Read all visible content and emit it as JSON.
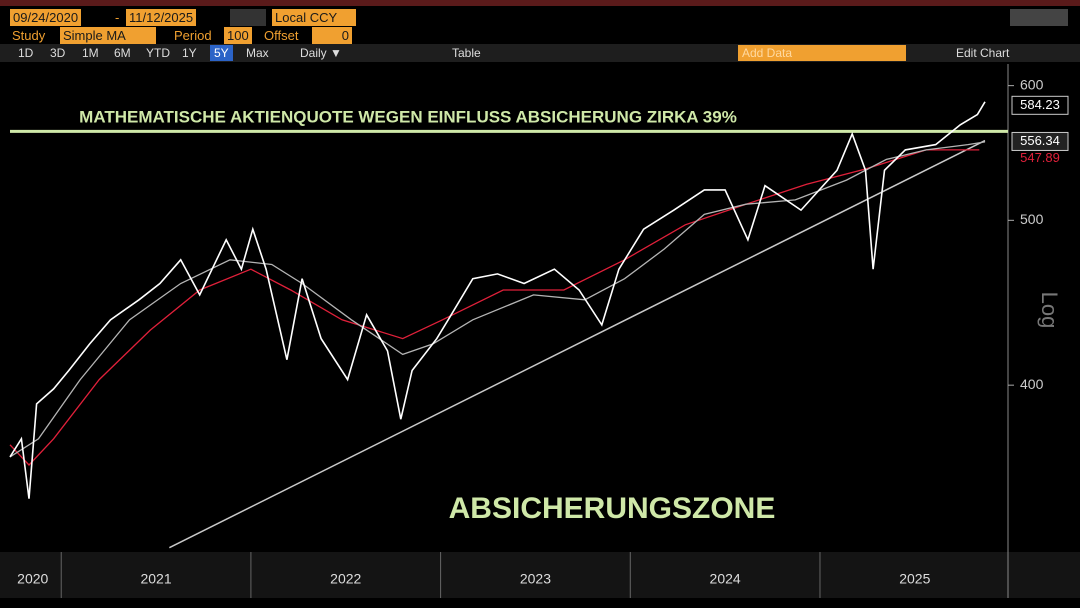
{
  "toolbar": {
    "start_date": "09/24/2020",
    "end_date": "11/12/2025",
    "currency": "Local CCY",
    "study_label": "Study",
    "study": "Simple MA",
    "period_label": "Period",
    "period": "100",
    "offset_label": "Offset",
    "offset": "0",
    "ranges": [
      "1D",
      "3D",
      "1M",
      "6M",
      "YTD",
      "1Y",
      "5Y",
      "Max"
    ],
    "selected_range": "5Y",
    "frequency": "Daily ▼",
    "table": "Table",
    "add_data": "Add Data",
    "edit_chart": "Edit Chart"
  },
  "chart_data": {
    "type": "line",
    "y_scale": "log",
    "y_scale_label": "Log",
    "annotations": [
      "MATHEMATISCHE AKTIENQUOTE WEGEN EINFLUSS ABSICHERUNG ZIRKA 39%",
      "ABSICHERUNGSZONE"
    ],
    "xlim": [
      2020.73,
      2025.87
    ],
    "ylim": [
      320,
      617
    ],
    "xticks": [
      {
        "value": 2020.85,
        "label": "2020"
      },
      {
        "value": 2021.5,
        "label": "2021"
      },
      {
        "value": 2022.5,
        "label": "2022"
      },
      {
        "value": 2023.5,
        "label": "2023"
      },
      {
        "value": 2024.5,
        "label": "2024"
      },
      {
        "value": 2025.5,
        "label": "2025"
      }
    ],
    "year_separators": [
      2021,
      2022,
      2023,
      2024,
      2025
    ],
    "yticks": [
      400,
      500,
      600
    ],
    "series": [
      {
        "color": "#ffffff",
        "last_value": 584.23,
        "x": [
          2020.73,
          2020.79,
          2020.83,
          2020.87,
          2020.96,
          2021.04,
          2021.15,
          2021.26,
          2021.41,
          2021.52,
          2021.63,
          2021.73,
          2021.87,
          2021.95,
          2022.01,
          2022.08,
          2022.19,
          2022.27,
          2022.37,
          2022.51,
          2022.61,
          2022.72,
          2022.79,
          2022.85,
          2022.98,
          2023.04,
          2023.17,
          2023.3,
          2023.44,
          2023.6,
          2023.73,
          2023.85,
          2023.94,
          2024.07,
          2024.23,
          2024.39,
          2024.5,
          2024.62,
          2024.71,
          2024.9,
          2025.09,
          2025.17,
          2025.24,
          2025.28,
          2025.34,
          2025.45,
          2025.61,
          2025.74,
          2025.83,
          2025.87
        ],
        "values": [
          363,
          372,
          343,
          390,
          398,
          408,
          423,
          437,
          449,
          459,
          474,
          452,
          487,
          468,
          494,
          468,
          414,
          462,
          426,
          403,
          440,
          419,
          382,
          408,
          426,
          437,
          462,
          465,
          459,
          468,
          455,
          434,
          468,
          494,
          507,
          521,
          521,
          487,
          524,
          507,
          535,
          562,
          535,
          468,
          535,
          550,
          554,
          569,
          577,
          587
        ]
      },
      {
        "color": "#b4b4b4",
        "last_value": 556.34,
        "x": [
          2020.73,
          2020.88,
          2021.1,
          2021.36,
          2021.63,
          2021.89,
          2022.11,
          2022.27,
          2022.53,
          2022.8,
          2022.96,
          2023.17,
          2023.49,
          2023.76,
          2023.97,
          2024.18,
          2024.39,
          2024.61,
          2024.87,
          2025.14,
          2025.35,
          2025.56,
          2025.78,
          2025.87
        ],
        "values": [
          363,
          372,
          403,
          437,
          459,
          474,
          471,
          459,
          437,
          417,
          423,
          437,
          452,
          449,
          462,
          481,
          504,
          511,
          514,
          528,
          543,
          550,
          554,
          556
        ]
      },
      {
        "color": "#e0203a",
        "last_value": 547.89,
        "x": [
          2020.73,
          2020.83,
          2020.96,
          2021.2,
          2021.47,
          2021.73,
          2022.0,
          2022.21,
          2022.48,
          2022.8,
          2023.01,
          2023.33,
          2023.65,
          2023.97,
          2024.29,
          2024.61,
          2024.93,
          2025.24,
          2025.56,
          2025.84
        ],
        "values": [
          369,
          359,
          372,
          403,
          431,
          455,
          468,
          455,
          437,
          426,
          437,
          455,
          455,
          474,
          497,
          511,
          525,
          536,
          550,
          550
        ]
      }
    ],
    "trend_line": {
      "color": "#c8c8c8",
      "x": [
        2021.57,
        2025.87
      ],
      "values": [
        321,
        557
      ]
    },
    "hline": {
      "color": "#cfe8a8",
      "value": 564
    }
  }
}
